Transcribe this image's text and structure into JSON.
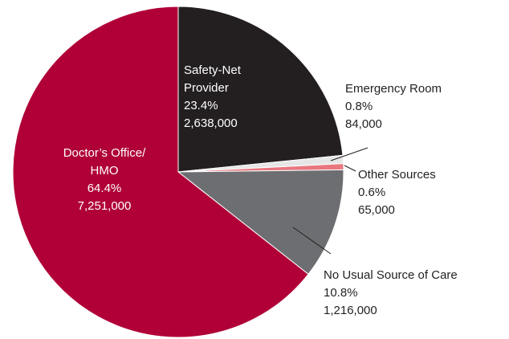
{
  "chart_data": {
    "type": "pie",
    "start_angle_deg": 0,
    "direction": "clockwise",
    "slices": [
      {
        "label_lines": [
          "Safety-Net",
          "Provider"
        ],
        "percent": 23.4,
        "percent_text": "23.4%",
        "count_text": "2,638,000",
        "color": "#231f20"
      },
      {
        "label_lines": [
          "Emergency Room"
        ],
        "percent": 0.8,
        "percent_text": "0.8%",
        "count_text": "84,000",
        "color": "#e6e6e6"
      },
      {
        "label_lines": [
          "Other Sources"
        ],
        "percent": 0.6,
        "percent_text": "0.6%",
        "count_text": "65,000",
        "color": "#e8777f"
      },
      {
        "label_lines": [
          "No Usual Source of Care"
        ],
        "percent": 10.8,
        "percent_text": "10.8%",
        "count_text": "1,216,000",
        "color": "#6d6e71"
      },
      {
        "label_lines": [
          "Doctor’s Office/",
          "HMO"
        ],
        "percent": 64.4,
        "percent_text": "64.4%",
        "count_text": "7,251,000",
        "color": "#b00037"
      }
    ]
  }
}
